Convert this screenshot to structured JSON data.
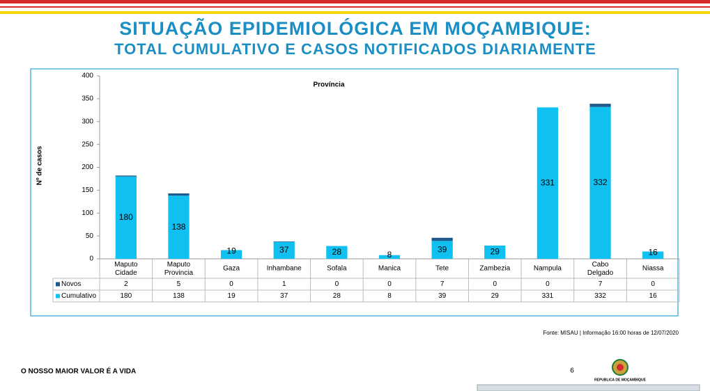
{
  "slide": {
    "title": "SITUAÇÃO EPIDEMIOLÓGICA EM MOÇAMBIQUE:",
    "subtitle": "TOTAL CUMULATIVO E CASOS NOTIFICADOS DIARIAMENTE",
    "source": "Fonte: MISAU | Informação 16:00 horas de 12/07/2020",
    "slogan": "O NOSSO MAIOR VALOR É A VIDA",
    "page": "6",
    "emblem_caption": "REPUBLICA DE MOÇAMBIQUE"
  },
  "chart_data": {
    "type": "stacked_bar",
    "title": "Província",
    "y_label": "Nº de casos",
    "categories": [
      "Maputo Cidade",
      "Maputo Provincia",
      "Gaza",
      "Inhambane",
      "Sofala",
      "Manica",
      "Tete",
      "Zambezia",
      "Nampula",
      "Cabo Delgado",
      "Niassa"
    ],
    "series": [
      {
        "name": "Novos",
        "color": "#1f5a8c",
        "values": [
          2,
          5,
          0,
          1,
          0,
          0,
          7,
          0,
          0,
          7,
          0
        ]
      },
      {
        "name": "Cumulativo",
        "color": "#0fc0f0",
        "values": [
          180,
          138,
          19,
          37,
          28,
          8,
          39,
          29,
          331,
          332,
          16
        ]
      }
    ],
    "ylim": [
      0,
      400
    ],
    "yticks": [
      0,
      50,
      100,
      150,
      200,
      250,
      300,
      350,
      400
    ],
    "grid": false
  }
}
